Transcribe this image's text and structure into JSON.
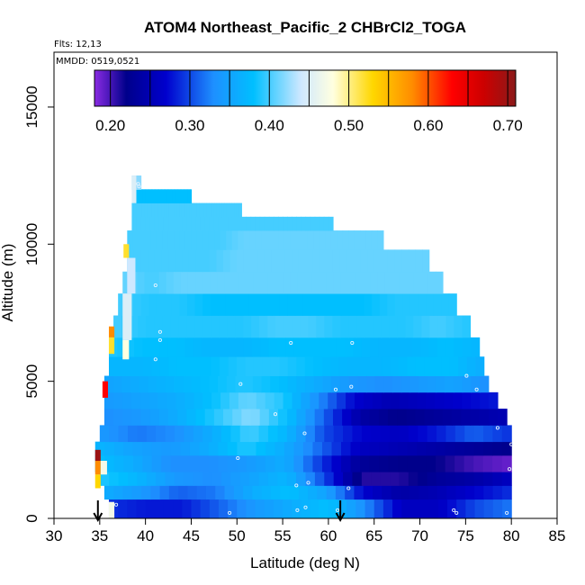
{
  "chart_data": {
    "type": "heatmap",
    "title": "ATOM4 Northeast_Pacific_2 CHBrCl2_TOGA",
    "annotations": [
      "Flts: 12,13",
      "MMDD: 0519,0521"
    ],
    "xlabel": "Latitude (deg N)",
    "ylabel": "Altitude (m)",
    "xlim": [
      30,
      85
    ],
    "ylim": [
      0,
      17000
    ],
    "x_ticks": [
      "30",
      "35",
      "40",
      "45",
      "50",
      "55",
      "60",
      "65",
      "70",
      "75",
      "80",
      "85"
    ],
    "y_ticks": [
      "0",
      "5000",
      "10000",
      "15000"
    ],
    "colorbar": {
      "min": 0.18,
      "max": 0.71,
      "ticks": [
        "0.20",
        "0.30",
        "0.40",
        "0.50",
        "0.60",
        "0.70"
      ],
      "breaks": [
        0.2,
        0.25,
        0.3,
        0.35,
        0.4,
        0.45,
        0.5,
        0.55,
        0.6,
        0.65,
        0.7
      ],
      "stops": [
        {
          "v": 0.18,
          "c": "#8a2be2"
        },
        {
          "v": 0.22,
          "c": "#00008b"
        },
        {
          "v": 0.27,
          "c": "#0000cd"
        },
        {
          "v": 0.33,
          "c": "#1e90ff"
        },
        {
          "v": 0.38,
          "c": "#00bfff"
        },
        {
          "v": 0.44,
          "c": "#cfe8ff"
        },
        {
          "v": 0.48,
          "c": "#ffffe0"
        },
        {
          "v": 0.53,
          "c": "#ffd700"
        },
        {
          "v": 0.58,
          "c": "#ff8c00"
        },
        {
          "v": 0.63,
          "c": "#ff0000"
        },
        {
          "v": 0.67,
          "c": "#cc0000"
        },
        {
          "v": 0.71,
          "c": "#8b1a1a"
        }
      ]
    },
    "layers": [
      {
        "alt": [
          0,
          700
        ],
        "lat": [
          36.0,
          80.0
        ],
        "values": [
          0.29,
          0.28,
          0.28,
          0.31,
          0.34,
          0.36,
          0.38,
          0.33,
          0.26,
          0.26,
          0.3,
          0.32
        ]
      },
      {
        "alt": [
          700,
          1200
        ],
        "lat": [
          35.5,
          80.0
        ],
        "values": [
          0.36,
          0.34,
          0.31,
          0.32,
          0.36,
          0.38,
          0.35,
          0.27,
          0.24,
          0.25,
          0.27,
          0.29
        ]
      },
      {
        "alt": [
          1200,
          1700
        ],
        "lat": [
          35.0,
          80.0
        ],
        "values": [
          0.39,
          0.37,
          0.34,
          0.33,
          0.35,
          0.37,
          0.3,
          0.21,
          0.21,
          0.23,
          0.24,
          0.26
        ]
      },
      {
        "alt": [
          1700,
          2300
        ],
        "lat": [
          34.5,
          80.0
        ],
        "values": [
          0.38,
          0.36,
          0.33,
          0.33,
          0.34,
          0.36,
          0.29,
          0.23,
          0.22,
          0.22,
          0.2,
          0.19
        ]
      },
      {
        "alt": [
          2300,
          2800
        ],
        "lat": [
          34.5,
          80.0
        ],
        "values": [
          0.37,
          0.35,
          0.34,
          0.36,
          0.39,
          0.36,
          0.31,
          0.26,
          0.25,
          0.24,
          0.23,
          0.22
        ]
      },
      {
        "alt": [
          2800,
          3400
        ],
        "lat": [
          35.0,
          80.0
        ],
        "values": [
          0.34,
          0.32,
          0.33,
          0.36,
          0.4,
          0.37,
          0.3,
          0.27,
          0.26,
          0.28,
          0.31,
          0.29
        ]
      },
      {
        "alt": [
          3400,
          4000
        ],
        "lat": [
          35.5,
          79.5
        ],
        "values": [
          0.33,
          0.34,
          0.36,
          0.39,
          0.42,
          0.38,
          0.31,
          0.24,
          0.22,
          0.23,
          0.24,
          0.25
        ]
      },
      {
        "alt": [
          4000,
          4600
        ],
        "lat": [
          35.5,
          78.5
        ],
        "values": [
          0.34,
          0.35,
          0.36,
          0.38,
          0.41,
          0.39,
          0.33,
          0.27,
          0.25,
          0.26,
          0.27,
          0.28
        ]
      },
      {
        "alt": [
          4600,
          5200
        ],
        "lat": [
          35.5,
          77.5
        ],
        "values": [
          0.35,
          0.36,
          0.37,
          0.38,
          0.39,
          0.38,
          0.36,
          0.34,
          0.33,
          0.34,
          0.35,
          0.33
        ]
      },
      {
        "alt": [
          5200,
          5900
        ],
        "lat": [
          36.0,
          77.0
        ],
        "values": [
          0.37,
          0.37,
          0.38,
          0.38,
          0.39,
          0.39,
          0.38,
          0.37,
          0.37,
          0.38,
          0.38,
          0.36
        ]
      },
      {
        "alt": [
          5900,
          6600
        ],
        "lat": [
          36.0,
          76.5
        ],
        "values": [
          0.39,
          0.38,
          0.38,
          0.37,
          0.37,
          0.38,
          0.38,
          0.38,
          0.37,
          0.37,
          0.38,
          0.37
        ]
      },
      {
        "alt": [
          6600,
          7400
        ],
        "lat": [
          36.5,
          75.5
        ],
        "values": [
          0.4,
          0.39,
          0.39,
          0.39,
          0.39,
          0.4,
          0.4,
          0.39,
          0.39,
          0.39,
          0.4,
          0.39
        ]
      },
      {
        "alt": [
          7400,
          8200
        ],
        "lat": [
          37.0,
          74.0
        ],
        "values": [
          0.4,
          0.39,
          0.39,
          0.38,
          0.38,
          0.38,
          0.38,
          0.38,
          0.38,
          0.39,
          0.39,
          0.39
        ]
      },
      {
        "alt": [
          8200,
          9000
        ],
        "lat": [
          37.5,
          72.5
        ],
        "values": [
          0.41,
          0.4,
          0.41,
          0.41,
          0.41,
          0.41,
          0.41,
          0.41,
          0.41,
          0.41,
          0.41,
          0.41
        ]
      },
      {
        "alt": [
          9000,
          9800
        ],
        "lat": [
          38.0,
          71.0
        ],
        "values": [
          0.4,
          0.4,
          0.4,
          0.4,
          0.41,
          0.41,
          0.41,
          0.41,
          0.41,
          0.41,
          0.41,
          0.41
        ]
      },
      {
        "alt": [
          9800,
          10500
        ],
        "lat": [
          38.0,
          66.0
        ],
        "values": [
          0.4,
          0.4,
          0.4,
          0.4,
          0.4,
          0.41,
          0.41,
          0.41,
          0.41,
          0.41,
          0.41,
          0.41
        ]
      },
      {
        "alt": [
          10500,
          11000
        ],
        "lat": [
          38.5,
          60.5
        ],
        "values": [
          0.4,
          0.4,
          0.4,
          0.4,
          0.4,
          0.4,
          0.4,
          0.4,
          0.4,
          0.4,
          0.4,
          0.4
        ]
      },
      {
        "alt": [
          11000,
          11500
        ],
        "lat": [
          38.5,
          50.5
        ],
        "values": [
          0.4,
          0.4,
          0.4,
          0.4,
          0.4,
          0.4,
          0.4,
          0.4,
          0.4,
          0.4,
          0.4,
          0.4
        ]
      },
      {
        "alt": [
          11500,
          12000
        ],
        "lat": [
          39.0,
          45.0
        ],
        "values": [
          0.38,
          0.38,
          0.38,
          0.38,
          0.38,
          0.38,
          0.38,
          0.38,
          0.38,
          0.38,
          0.38,
          0.38
        ]
      },
      {
        "alt": [
          12000,
          12500
        ],
        "lat": [
          38.5,
          39.5
        ],
        "values": [
          0.42,
          0.42,
          0.42,
          0.42,
          0.42,
          0.42,
          0.42,
          0.42,
          0.42,
          0.42,
          0.42,
          0.42
        ]
      }
    ],
    "edge_profile": [
      {
        "alt": [
          0,
          600
        ],
        "lat": [
          36.0,
          36.6
        ],
        "value": 0.47
      },
      {
        "alt": [
          1100,
          1600
        ],
        "lat": [
          34.5,
          35.1
        ],
        "value": 0.53
      },
      {
        "alt": [
          1600,
          2100
        ],
        "lat": [
          34.5,
          35.1
        ],
        "value": 0.58
      },
      {
        "alt": [
          2100,
          2500
        ],
        "lat": [
          34.5,
          35.1
        ],
        "value": 0.7
      },
      {
        "alt": [
          1600,
          2100
        ],
        "lat": [
          35.1,
          35.8
        ],
        "value": 0.47
      },
      {
        "alt": [
          4400,
          5000
        ],
        "lat": [
          35.3,
          35.9
        ],
        "value": 0.63
      },
      {
        "alt": [
          6000,
          6600
        ],
        "lat": [
          36.0,
          36.6
        ],
        "value": 0.52
      },
      {
        "alt": [
          6600,
          7000
        ],
        "lat": [
          36.0,
          36.6
        ],
        "value": 0.58
      },
      {
        "alt": [
          5800,
          6500
        ],
        "lat": [
          37.5,
          38.2
        ],
        "value": 0.48
      },
      {
        "alt": [
          6500,
          8200
        ],
        "lat": [
          37.5,
          38.5
        ],
        "value": 0.45
      },
      {
        "alt": [
          8200,
          9500
        ],
        "lat": [
          38.0,
          38.9
        ],
        "value": 0.44
      },
      {
        "alt": [
          9500,
          10000
        ],
        "lat": [
          37.6,
          38.2
        ],
        "value": 0.52
      },
      {
        "alt": [
          11500,
          12500
        ],
        "lat": [
          38.5,
          39.0
        ],
        "value": 0.45
      }
    ],
    "samples": [
      {
        "lat": 36.8,
        "alt": 500
      },
      {
        "lat": 49.2,
        "alt": 200
      },
      {
        "lat": 56.6,
        "alt": 300
      },
      {
        "lat": 57.5,
        "alt": 400
      },
      {
        "lat": 61.0,
        "alt": 300
      },
      {
        "lat": 73.7,
        "alt": 300
      },
      {
        "lat": 74.0,
        "alt": 200
      },
      {
        "lat": 79.5,
        "alt": 200
      },
      {
        "lat": 56.5,
        "alt": 1200
      },
      {
        "lat": 57.8,
        "alt": 1300
      },
      {
        "lat": 62.2,
        "alt": 1100
      },
      {
        "lat": 79.8,
        "alt": 1800
      },
      {
        "lat": 50.1,
        "alt": 2200
      },
      {
        "lat": 57.4,
        "alt": 3100
      },
      {
        "lat": 78.5,
        "alt": 3300
      },
      {
        "lat": 80.0,
        "alt": 2700
      },
      {
        "lat": 54.2,
        "alt": 3800
      },
      {
        "lat": 50.4,
        "alt": 4900
      },
      {
        "lat": 60.8,
        "alt": 4700
      },
      {
        "lat": 62.5,
        "alt": 4800
      },
      {
        "lat": 75.1,
        "alt": 5200
      },
      {
        "lat": 76.2,
        "alt": 4700
      },
      {
        "lat": 41.1,
        "alt": 5800
      },
      {
        "lat": 41.6,
        "alt": 6800
      },
      {
        "lat": 41.6,
        "alt": 6500
      },
      {
        "lat": 55.9,
        "alt": 6400
      },
      {
        "lat": 62.6,
        "alt": 6400
      },
      {
        "lat": 41.1,
        "alt": 8500
      },
      {
        "lat": 39.2,
        "alt": 12200
      },
      {
        "lat": 39.3,
        "alt": 12100
      }
    ],
    "arrows": [
      34.8,
      61.3
    ]
  }
}
